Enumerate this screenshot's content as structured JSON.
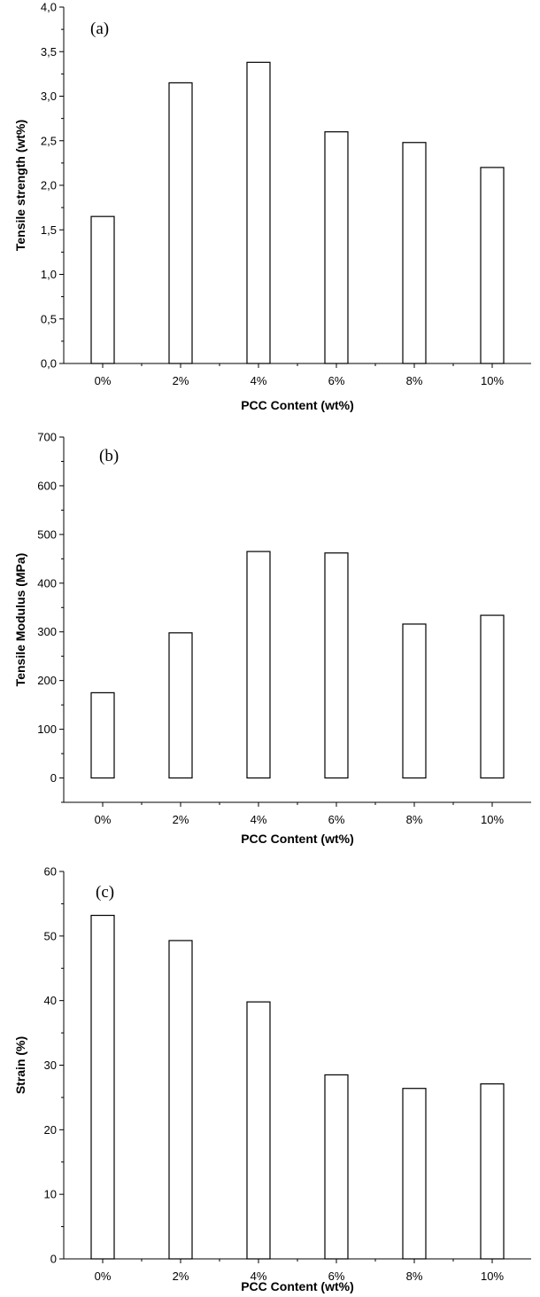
{
  "chart_data": [
    {
      "type": "bar",
      "panel_label": "(a)",
      "categories": [
        "0%",
        "2%",
        "4%",
        "6%",
        "8%",
        "10%"
      ],
      "values": [
        1.65,
        3.15,
        3.38,
        2.6,
        2.48,
        2.2
      ],
      "xlabel": "PCC Content (wt%)",
      "ylabel": "Tensile strength (wt%)",
      "ylim": [
        0,
        4.0
      ],
      "yticks": [
        "0,0",
        "0,5",
        "1,0",
        "1,5",
        "2,0",
        "2,5",
        "3,0",
        "3,5",
        "4,0"
      ],
      "grid": false
    },
    {
      "type": "bar",
      "panel_label": "(b)",
      "categories": [
        "0%",
        "2%",
        "4%",
        "6%",
        "8%",
        "10%"
      ],
      "values": [
        175,
        298,
        465,
        462,
        316,
        334
      ],
      "xlabel": "PCC Content (wt%)",
      "ylabel": "Tensile Modulus (MPa)",
      "ylim": [
        -50,
        700
      ],
      "yticks": [
        "0",
        "100",
        "200",
        "300",
        "400",
        "500",
        "600",
        "700"
      ],
      "grid": false
    },
    {
      "type": "bar",
      "panel_label": "(c)",
      "categories": [
        "0%",
        "2%",
        "4%",
        "6%",
        "8%",
        "10%"
      ],
      "values": [
        53.2,
        49.3,
        39.8,
        28.5,
        26.4,
        27.1
      ],
      "xlabel": "PCC Content (wt%)",
      "ylabel": "Strain (%)",
      "ylim": [
        0,
        60
      ],
      "yticks": [
        "0",
        "10",
        "20",
        "30",
        "40",
        "50",
        "60"
      ],
      "grid": false
    }
  ]
}
